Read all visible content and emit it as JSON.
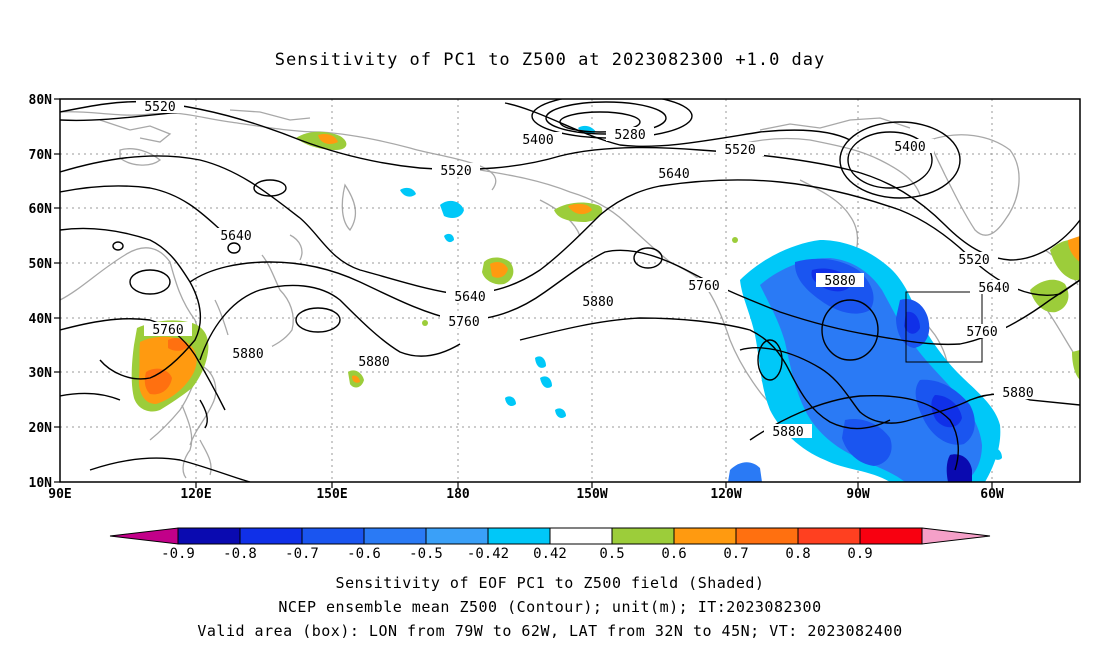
{
  "title": "Sensitivity of PC1 to Z500 at 2023082300 +1.0 day",
  "map": {
    "lon_range": [
      "90E",
      "60W (+20)"
    ],
    "lat_range": [
      10,
      80
    ],
    "lat_labels": [
      "80N",
      "70N",
      "60N",
      "50N",
      "40N",
      "30N",
      "20N",
      "10N"
    ],
    "lon_labels": [
      "90E",
      "120E",
      "150E",
      "180",
      "150W",
      "120W",
      "90W",
      "60W"
    ],
    "contour_labels": [
      "5520",
      "5400",
      "5280",
      "5520",
      "5400",
      "5520",
      "5640",
      "5640",
      "5520",
      "5640",
      "5640",
      "5760",
      "5880",
      "5760",
      "5880",
      "5760",
      "5880",
      "5880",
      "5760",
      "5880",
      "5880"
    ],
    "box": {
      "lon": [
        "79W",
        "62W"
      ],
      "lat": [
        "32N",
        "45N"
      ]
    }
  },
  "colorbar": {
    "labels": [
      "-0.9",
      "-0.8",
      "-0.7",
      "-0.6",
      "-0.5",
      "-0.42",
      "0.42",
      "0.5",
      "0.6",
      "0.7",
      "0.8",
      "0.9"
    ],
    "colors": [
      "#c20089",
      "#0a0ab0",
      "#1030e8",
      "#1a55f0",
      "#2a7af5",
      "#3aa0f8",
      "#00c8f8",
      "#ffffff",
      "#9ccd3a",
      "#ff9a10",
      "#ff7010",
      "#ff4020",
      "#f80010",
      "#f5a0c8"
    ]
  },
  "footer": {
    "line1": "Sensitivity of EOF PC1 to Z500 field (Shaded)",
    "line2": "NCEP ensemble mean Z500 (Contour); unit(m); IT:2023082300",
    "line3": "Valid area (box): LON from 79W to 62W, LAT from 32N to 45N; VT: 2023082400"
  }
}
